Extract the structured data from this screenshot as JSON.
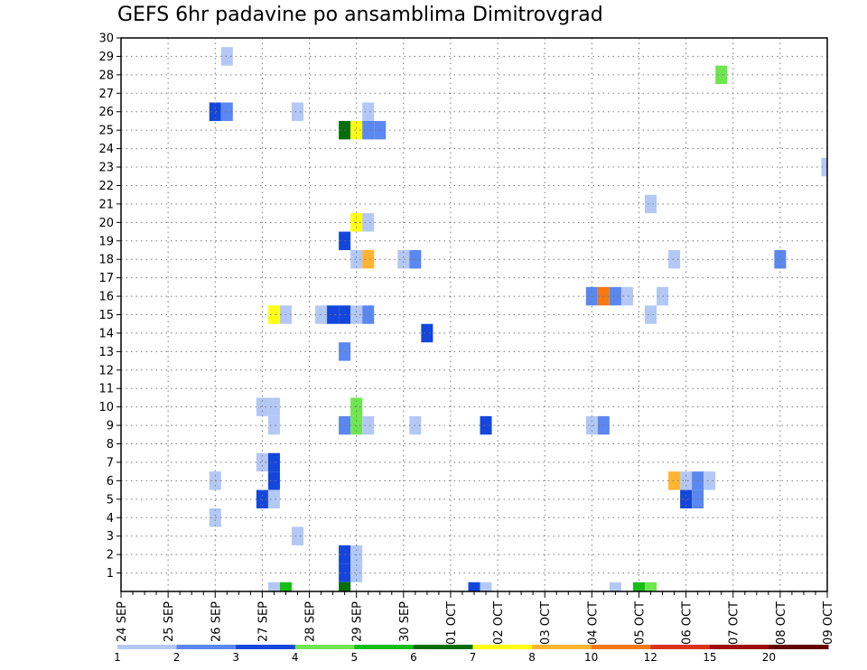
{
  "chart_data": {
    "type": "heatmap",
    "title": "GEFS 6hr padavine po ansamblima Dimitrovgrad",
    "xlabel": "",
    "ylabel": "",
    "x_ticks": [
      "24 SEP",
      "25 SEP",
      "26 SEP",
      "27 SEP",
      "28 SEP",
      "29 SEP",
      "30 SEP",
      "01 OCT",
      "02 OCT",
      "03 OCT",
      "04 OCT",
      "05 OCT",
      "06 OCT",
      "07 OCT",
      "08 OCT",
      "09 OCT"
    ],
    "x_range_steps": [
      0,
      60
    ],
    "x_step_hours": 6,
    "y_ticks": [
      1,
      2,
      3,
      4,
      5,
      6,
      7,
      8,
      9,
      10,
      11,
      12,
      13,
      14,
      15,
      16,
      17,
      18,
      19,
      20,
      21,
      22,
      23,
      24,
      25,
      26,
      27,
      28,
      29,
      30
    ],
    "ylim": [
      0,
      30
    ],
    "grid": true,
    "colorbar": {
      "labels": [
        "1",
        "2",
        "3",
        "4",
        "5",
        "6",
        "7",
        "8",
        "10",
        "12",
        "15",
        "20"
      ],
      "colors": [
        "#b4c8f5",
        "#5a87f0",
        "#1446dc",
        "#6ee650",
        "#14be14",
        "#086e08",
        "#ffff14",
        "#ffb432",
        "#f57814",
        "#dc3214",
        "#a00a0a",
        "#640000"
      ]
    },
    "cells": [
      {
        "step": 9,
        "member": 29,
        "level": 1
      },
      {
        "step": 8,
        "member": 26,
        "level": 3
      },
      {
        "step": 9,
        "member": 26,
        "level": 2
      },
      {
        "step": 15,
        "member": 26,
        "level": 1
      },
      {
        "step": 21,
        "member": 26,
        "level": 1
      },
      {
        "step": 19,
        "member": 25,
        "level": 6
      },
      {
        "step": 20,
        "member": 25,
        "level": 7
      },
      {
        "step": 21,
        "member": 25,
        "level": 2
      },
      {
        "step": 22,
        "member": 25,
        "level": 2
      },
      {
        "step": 51,
        "member": 28,
        "level": 4
      },
      {
        "step": 60,
        "member": 23,
        "level": 1
      },
      {
        "step": 45,
        "member": 21,
        "level": 1
      },
      {
        "step": 20,
        "member": 20,
        "level": 7
      },
      {
        "step": 21,
        "member": 20,
        "level": 1
      },
      {
        "step": 19,
        "member": 19,
        "level": 3
      },
      {
        "step": 20,
        "member": 18,
        "level": 1
      },
      {
        "step": 21,
        "member": 18,
        "level": 8
      },
      {
        "step": 24,
        "member": 18,
        "level": 1
      },
      {
        "step": 25,
        "member": 18,
        "level": 2
      },
      {
        "step": 47,
        "member": 18,
        "level": 1
      },
      {
        "step": 56,
        "member": 18,
        "level": 2
      },
      {
        "step": 40,
        "member": 16,
        "level": 2
      },
      {
        "step": 41,
        "member": 16,
        "level": 9
      },
      {
        "step": 42,
        "member": 16,
        "level": 2
      },
      {
        "step": 43,
        "member": 16,
        "level": 1
      },
      {
        "step": 46,
        "member": 16,
        "level": 1
      },
      {
        "step": 13,
        "member": 15,
        "level": 7
      },
      {
        "step": 14,
        "member": 15,
        "level": 1
      },
      {
        "step": 17,
        "member": 15,
        "level": 1
      },
      {
        "step": 18,
        "member": 15,
        "level": 3
      },
      {
        "step": 19,
        "member": 15,
        "level": 3
      },
      {
        "step": 20,
        "member": 15,
        "level": 1
      },
      {
        "step": 21,
        "member": 15,
        "level": 2
      },
      {
        "step": 45,
        "member": 15,
        "level": 1
      },
      {
        "step": 26,
        "member": 14,
        "level": 3
      },
      {
        "step": 19,
        "member": 13,
        "level": 2
      },
      {
        "step": 12,
        "member": 10,
        "level": 1
      },
      {
        "step": 13,
        "member": 10,
        "level": 1
      },
      {
        "step": 20,
        "member": 10,
        "level": 4
      },
      {
        "step": 13,
        "member": 9,
        "level": 1
      },
      {
        "step": 19,
        "member": 9,
        "level": 2
      },
      {
        "step": 20,
        "member": 9,
        "level": 4
      },
      {
        "step": 21,
        "member": 9,
        "level": 1
      },
      {
        "step": 25,
        "member": 9,
        "level": 1
      },
      {
        "step": 31,
        "member": 9,
        "level": 3
      },
      {
        "step": 40,
        "member": 9,
        "level": 1
      },
      {
        "step": 41,
        "member": 9,
        "level": 2
      },
      {
        "step": 12,
        "member": 7,
        "level": 1
      },
      {
        "step": 13,
        "member": 7,
        "level": 3
      },
      {
        "step": 13,
        "member": 6,
        "level": 3
      },
      {
        "step": 8,
        "member": 6,
        "level": 1
      },
      {
        "step": 47,
        "member": 6,
        "level": 8
      },
      {
        "step": 48,
        "member": 6,
        "level": 1
      },
      {
        "step": 49,
        "member": 6,
        "level": 2
      },
      {
        "step": 50,
        "member": 6,
        "level": 1
      },
      {
        "step": 12,
        "member": 5,
        "level": 3
      },
      {
        "step": 13,
        "member": 5,
        "level": 1
      },
      {
        "step": 48,
        "member": 5,
        "level": 3
      },
      {
        "step": 49,
        "member": 5,
        "level": 2
      },
      {
        "step": 8,
        "member": 4,
        "level": 1
      },
      {
        "step": 15,
        "member": 3,
        "level": 1
      },
      {
        "step": 19,
        "member": 2,
        "level": 3
      },
      {
        "step": 20,
        "member": 2,
        "level": 1
      },
      {
        "step": 19,
        "member": 1,
        "level": 3
      },
      {
        "step": 20,
        "member": 1,
        "level": 1
      },
      {
        "step": 13,
        "member": 0,
        "level": 1
      },
      {
        "step": 14,
        "member": 0,
        "level": 5
      },
      {
        "step": 19,
        "member": 0,
        "level": 6
      },
      {
        "step": 30,
        "member": 0,
        "level": 3
      },
      {
        "step": 31,
        "member": 0,
        "level": 1
      },
      {
        "step": 42,
        "member": 0,
        "level": 1
      },
      {
        "step": 44,
        "member": 0,
        "level": 5
      },
      {
        "step": 45,
        "member": 0,
        "level": 4
      }
    ]
  }
}
